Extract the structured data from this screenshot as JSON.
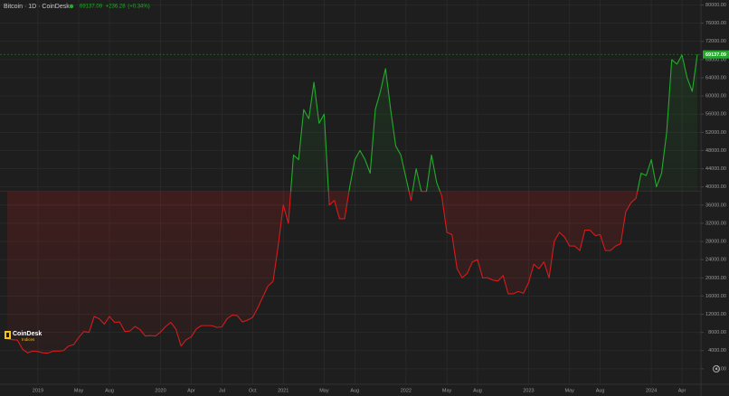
{
  "chart_data": {
    "type": "baseline",
    "title": "Bitcoin · 1D · CoinDesk",
    "change": "+236.28",
    "change_pct": "(+0.34%)",
    "logo": {
      "name": "CoinDesk",
      "sub": "Indices"
    },
    "baseline": 39000,
    "colors": {
      "up": "#22ab2a",
      "down": "#d81a1a"
    },
    "grid": true,
    "categories": [
      null,
      null,
      null,
      null,
      null,
      null,
      "2019",
      null,
      null,
      null,
      null,
      null,
      null,
      null,
      "May",
      null,
      null,
      null,
      null,
      null,
      "Aug",
      null,
      null,
      null,
      null,
      null,
      null,
      null,
      null,
      null,
      "2020",
      null,
      null,
      null,
      null,
      null,
      "Apr",
      null,
      null,
      null,
      null,
      null,
      "Jul",
      null,
      null,
      null,
      null,
      null,
      "Oct",
      null,
      null,
      null,
      null,
      null,
      "2021",
      null,
      null,
      null,
      null,
      null,
      null,
      null,
      "May",
      null,
      null,
      null,
      null,
      null,
      "Aug",
      null,
      null,
      null,
      null,
      null,
      null,
      null,
      null,
      null,
      "2022",
      null,
      null,
      null,
      null,
      null,
      null,
      null,
      "May",
      null,
      null,
      null,
      null,
      null,
      "Aug",
      null,
      null,
      null,
      null,
      null,
      null,
      null,
      null,
      null,
      "2023",
      null,
      null,
      null,
      null,
      null,
      null,
      null,
      "May",
      null,
      null,
      null,
      null,
      null,
      "Aug",
      null,
      null,
      null,
      null,
      null,
      null,
      null,
      null,
      null,
      "2024",
      null,
      null,
      null,
      null,
      null,
      "Apr",
      null,
      null,
      null
    ],
    "values": [
      6600,
      6400,
      6300,
      4300,
      3500,
      3900,
      3800,
      3500,
      3450,
      3900,
      3900,
      4000,
      5000,
      5300,
      6900,
      8200,
      8000,
      11500,
      11000,
      9800,
      11500,
      10200,
      10300,
      8200,
      8300,
      9300,
      8600,
      7200,
      7300,
      7200,
      8100,
      9300,
      10200,
      8700,
      5000,
      6400,
      7000,
      8800,
      9500,
      9500,
      9500,
      9100,
      9200,
      11000,
      11800,
      11700,
      10300,
      10700,
      11300,
      13400,
      15800,
      18200,
      19200,
      27000,
      36000,
      32000,
      47000,
      46000,
      57000,
      55000,
      63000,
      54000,
      56000,
      36000,
      37000,
      33000,
      33000,
      40000,
      46000,
      48000,
      46000,
      43000,
      57000,
      61000,
      66000,
      57000,
      49000,
      47000,
      42000,
      37000,
      44000,
      39000,
      39000,
      47000,
      41000,
      38000,
      30000,
      29500,
      22000,
      20000,
      21000,
      23500,
      24000,
      20000,
      20000,
      19500,
      19300,
      20500,
      16500,
      16500,
      17000,
      16600,
      19000,
      23000,
      22000,
      23500,
      20000,
      28000,
      30000,
      29000,
      27000,
      27000,
      26000,
      30500,
      30500,
      29300,
      29500,
      26000,
      26000,
      27000,
      27500,
      34500,
      36500,
      37500,
      43000,
      42500,
      46000,
      40000,
      43000,
      52000,
      68000,
      67000,
      69000,
      64000,
      61000,
      69137.09
    ],
    "ylim": [
      -3400,
      81100
    ],
    "yticks": [
      {
        "value": 0,
        "label": "0.00"
      },
      {
        "value": 4000,
        "label": "4000.00"
      },
      {
        "value": 8000,
        "label": "8000.00"
      },
      {
        "value": 12000,
        "label": "12000.00"
      },
      {
        "value": 16000,
        "label": "16000.00"
      },
      {
        "value": 20000,
        "label": "20000.00"
      },
      {
        "value": 24000,
        "label": "24000.00"
      },
      {
        "value": 28000,
        "label": "28000.00"
      },
      {
        "value": 32000,
        "label": "32000.00"
      },
      {
        "value": 36000,
        "label": "36000.00"
      },
      {
        "value": 40000,
        "label": "40000.00"
      },
      {
        "value": 44000,
        "label": "44000.00"
      },
      {
        "value": 48000,
        "label": "48000.00"
      },
      {
        "value": 52000,
        "label": "52000.00"
      },
      {
        "value": 56000,
        "label": "56000.00"
      },
      {
        "value": 60000,
        "label": "60000.00"
      },
      {
        "value": 64000,
        "label": "64000.00"
      },
      {
        "value": 68000,
        "label": "68000.00"
      },
      {
        "value": 72000,
        "label": "72000.00"
      },
      {
        "value": 76000,
        "label": "76000.00"
      },
      {
        "value": 80000,
        "label": "80000.00"
      }
    ]
  }
}
